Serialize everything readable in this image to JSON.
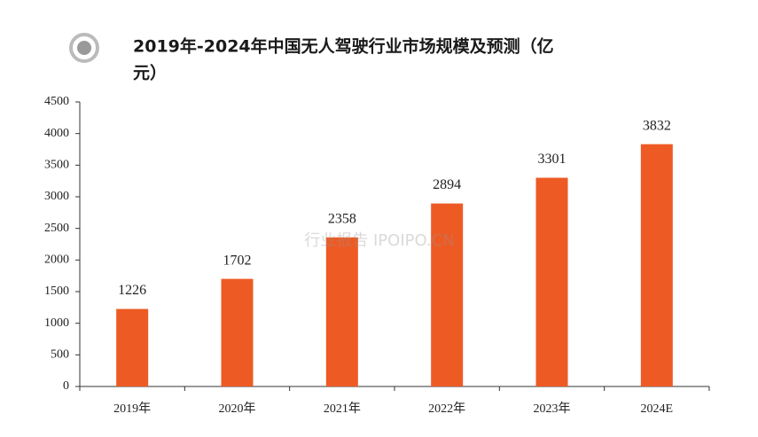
{
  "chart_data": {
    "type": "bar",
    "title_lines": [
      "2019年-2024年中国无人驾驶行业市场规模及预测（亿",
      "元）"
    ],
    "categories": [
      "2019年",
      "2020年",
      "2021年",
      "2022年",
      "2023年",
      "2024E"
    ],
    "values": [
      1226,
      1702,
      2358,
      2894,
      3301,
      3832
    ],
    "color": "#ee5a24",
    "ylim": [
      0,
      4500
    ],
    "yticks": [
      0,
      500,
      1000,
      1500,
      2000,
      2500,
      3000,
      3500,
      4000,
      4500
    ],
    "watermark": "行业报告 IPOIPO.CN"
  }
}
